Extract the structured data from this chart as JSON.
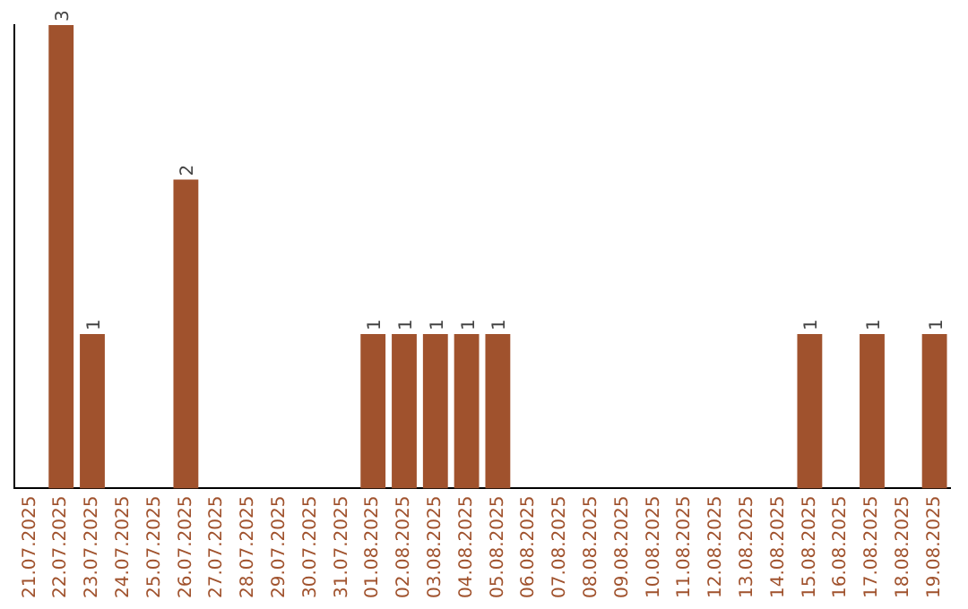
{
  "chart_data": {
    "type": "bar",
    "categories": [
      "21.07.2025",
      "22.07.2025",
      "23.07.2025",
      "24.07.2025",
      "25.07.2025",
      "26.07.2025",
      "27.07.2025",
      "28.07.2025",
      "29.07.2025",
      "30.07.2025",
      "31.07.2025",
      "01.08.2025",
      "02.08.2025",
      "03.08.2025",
      "04.08.2025",
      "05.08.2025",
      "06.08.2025",
      "07.08.2025",
      "08.08.2025",
      "09.08.2025",
      "10.08.2025",
      "11.08.2025",
      "12.08.2025",
      "13.08.2025",
      "14.08.2025",
      "15.08.2025",
      "16.08.2025",
      "17.08.2025",
      "18.08.2025",
      "19.08.2025"
    ],
    "values": [
      0,
      3,
      1,
      0,
      0,
      2,
      0,
      0,
      0,
      0,
      0,
      1,
      1,
      1,
      1,
      1,
      0,
      0,
      0,
      0,
      0,
      0,
      0,
      0,
      0,
      1,
      0,
      1,
      0,
      1
    ],
    "value_labels": [
      null,
      "3",
      "1",
      null,
      null,
      "2",
      null,
      null,
      null,
      null,
      null,
      "1",
      "1",
      "1",
      "1",
      "1",
      null,
      null,
      null,
      null,
      null,
      null,
      null,
      null,
      null,
      "1",
      null,
      "1",
      null,
      "1"
    ],
    "color": "#a0522d",
    "grid": false,
    "legend": false,
    "tick_labels": "x"
  }
}
